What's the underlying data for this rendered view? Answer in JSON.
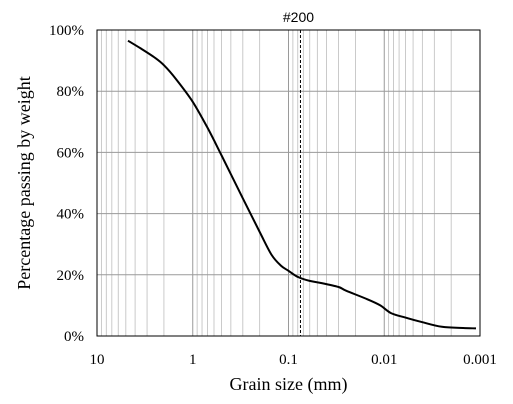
{
  "chart_data": {
    "type": "line",
    "title": "",
    "xlabel": "Grain size (mm)",
    "ylabel": "Percentage passing by weight",
    "x_scale": "log",
    "x_reversed": true,
    "xlim": [
      10,
      0.001
    ],
    "ylim": [
      0,
      100
    ],
    "x_ticks": [
      {
        "value": 10,
        "label": "10"
      },
      {
        "value": 1,
        "label": "1"
      },
      {
        "value": 0.1,
        "label": "0.1"
      },
      {
        "value": 0.01,
        "label": "0.01"
      },
      {
        "value": 0.001,
        "label": "0.001"
      }
    ],
    "y_ticks": [
      {
        "value": 0,
        "label": "0%"
      },
      {
        "value": 20,
        "label": "20%"
      },
      {
        "value": 40,
        "label": "40%"
      },
      {
        "value": 60,
        "label": "60%"
      },
      {
        "value": 80,
        "label": "80%"
      },
      {
        "value": 100,
        "label": "100%"
      }
    ],
    "grid": true,
    "legend": "none",
    "line_color": "#000000",
    "reference_line": {
      "x": 0.075,
      "label": "#200",
      "style": "dashed"
    },
    "series": [
      {
        "values": [
          {
            "x": 4.75,
            "y": 96.5
          },
          {
            "x": 3.5,
            "y": 94
          },
          {
            "x": 2.5,
            "y": 91
          },
          {
            "x": 2.0,
            "y": 88.5
          },
          {
            "x": 1.5,
            "y": 84
          },
          {
            "x": 1.0,
            "y": 76.5
          },
          {
            "x": 0.7,
            "y": 68
          },
          {
            "x": 0.5,
            "y": 59
          },
          {
            "x": 0.3,
            "y": 45
          },
          {
            "x": 0.2,
            "y": 34
          },
          {
            "x": 0.15,
            "y": 26.5
          },
          {
            "x": 0.12,
            "y": 23
          },
          {
            "x": 0.1,
            "y": 21.3
          },
          {
            "x": 0.08,
            "y": 19.3
          },
          {
            "x": 0.06,
            "y": 18
          },
          {
            "x": 0.045,
            "y": 17.3
          },
          {
            "x": 0.03,
            "y": 16
          },
          {
            "x": 0.025,
            "y": 14.8
          },
          {
            "x": 0.015,
            "y": 12
          },
          {
            "x": 0.011,
            "y": 10
          },
          {
            "x": 0.0085,
            "y": 7.5
          },
          {
            "x": 0.006,
            "y": 6
          },
          {
            "x": 0.004,
            "y": 4.5
          },
          {
            "x": 0.0025,
            "y": 3
          },
          {
            "x": 0.0015,
            "y": 2.6
          },
          {
            "x": 0.0011,
            "y": 2.5
          }
        ]
      }
    ]
  }
}
